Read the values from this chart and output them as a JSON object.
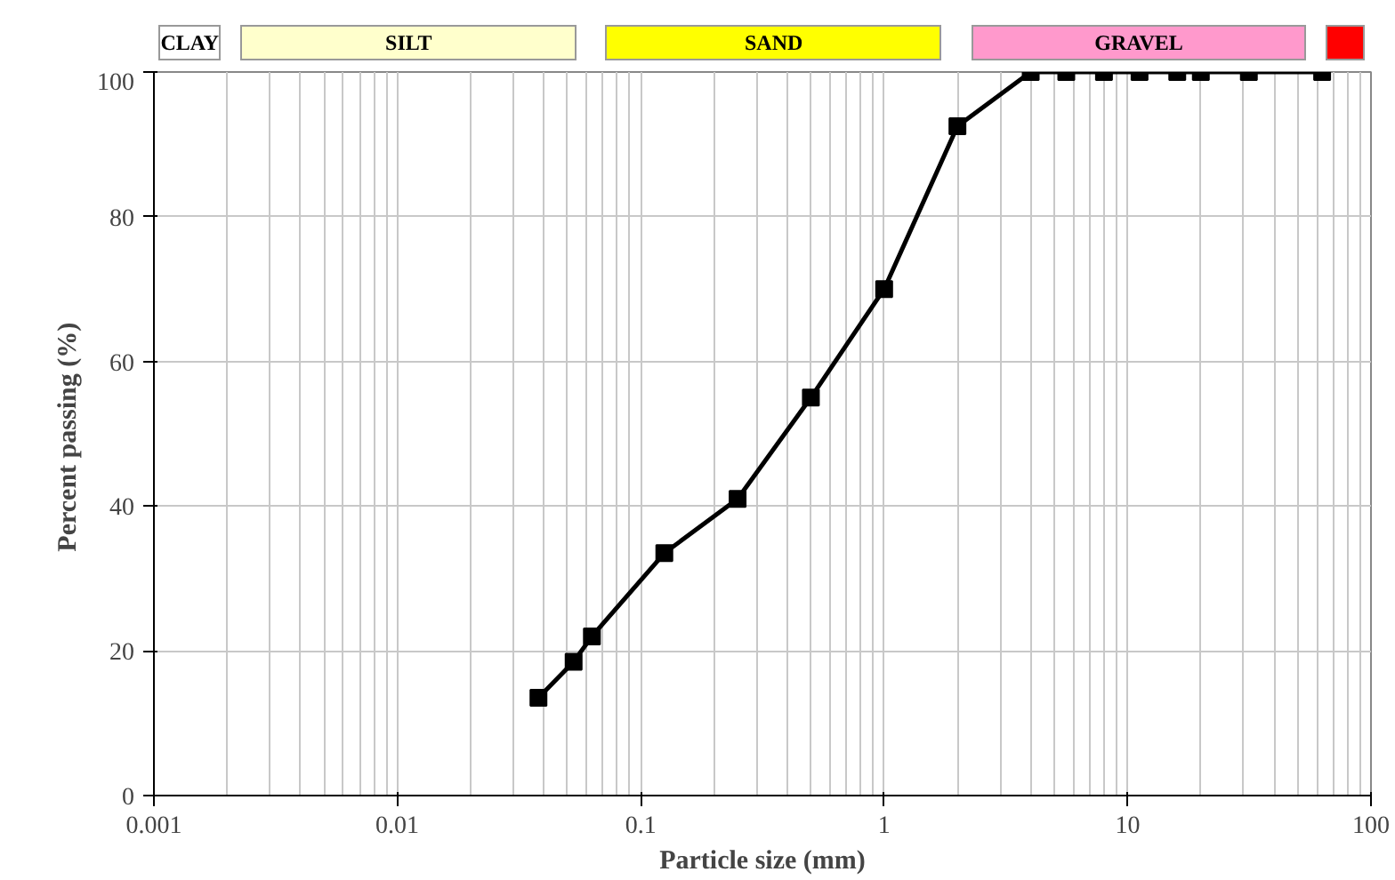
{
  "chart_data": {
    "type": "line",
    "xlabel": "Particle size (mm)",
    "ylabel": "Percent passing  (%)",
    "log": "x",
    "xlim": [
      0.001,
      100
    ],
    "ylim": [
      0,
      100
    ],
    "xticks": [
      0.001,
      0.01,
      0.1,
      1,
      10,
      100
    ],
    "yticks": [
      0,
      20,
      40,
      60,
      80,
      100
    ],
    "grid": true,
    "marker": "square",
    "line_style": "solid",
    "annotations": [
      "CLAY",
      "SILT",
      "SAND",
      "GRAVEL"
    ],
    "x": [
      0.038,
      0.053,
      0.063,
      0.125,
      0.25,
      0.5,
      1,
      2,
      4,
      5.6,
      8,
      11.2,
      16,
      20,
      31.5,
      63
    ],
    "series": [
      {
        "color": "#000000",
        "values": [
          13.5,
          18.5,
          22,
          33.5,
          41,
          55,
          70,
          92.5,
          100,
          100,
          100,
          100,
          100,
          100,
          100,
          100
        ]
      }
    ]
  }
}
